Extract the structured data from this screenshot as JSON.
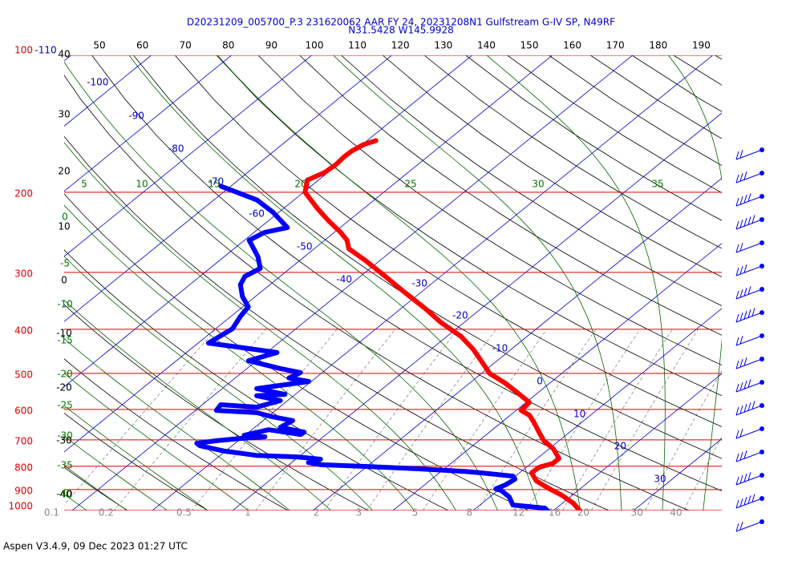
{
  "chart_data": {
    "type": "skewt",
    "title": "D20231209_005700_P.3 231620062 AAR FY 24, 20231208N1 Gulfstream G-IV SP, N49RF",
    "subtitle": "N31.5428 W145.9928",
    "footer": "Aspen V3.4.9, 09 Dec 2023  01:27 UTC",
    "pressure_ticks": [
      100,
      200,
      300,
      400,
      500,
      600,
      700,
      800,
      900,
      1000
    ],
    "isotherm_labels": [
      -110,
      -100,
      -90,
      -80,
      -70,
      -60,
      -50,
      -40,
      -30,
      -20,
      -10,
      0,
      10,
      20,
      30
    ],
    "top_labels": [
      50,
      60,
      70,
      80,
      90,
      100,
      110,
      120,
      130,
      140,
      150,
      160,
      170,
      180,
      190
    ],
    "left_black_labels": [
      40,
      30,
      20,
      10,
      0,
      -10,
      -20,
      -30,
      -40
    ],
    "left_green_labels": [
      0,
      -5,
      -10,
      -15,
      -20,
      -25,
      -30,
      -35,
      -40
    ],
    "top_green_labels": [
      5,
      10,
      15,
      20,
      25,
      30,
      35
    ],
    "mixing_ratio_labels": [
      0.1,
      0.2,
      0.5,
      1,
      2,
      3,
      5,
      8,
      12,
      16,
      20,
      30,
      40
    ],
    "series": [
      {
        "color": "#ff0000",
        "pressure": [
          1013,
          965,
          926,
          897,
          861,
          827,
          804,
          788,
          769,
          732,
          703,
          675,
          643,
          618,
          603,
          579,
          551,
          525,
          500,
          469,
          443,
          415,
          387,
          360,
          332,
          306,
          282,
          266,
          255,
          245,
          231,
          217,
          200,
          188,
          181,
          174,
          167,
          162,
          157,
          154
        ],
        "temperature": [
          23.9,
          21.4,
          18.7,
          16.2,
          13.3,
          11.5,
          11.6,
          12.7,
          12.7,
          10.5,
          8.1,
          6.3,
          4.2,
          2.4,
          0.6,
          0.4,
          -2.6,
          -5.6,
          -9.0,
          -12.0,
          -14.7,
          -18.2,
          -22.8,
          -27.0,
          -32.0,
          -36.9,
          -41.9,
          -45.7,
          -47.2,
          -49.2,
          -52.5,
          -55.8,
          -59.8,
          -61.4,
          -60.4,
          -60.2,
          -60.4,
          -60.3,
          -59.8,
          -58.9
        ]
      },
      {
        "color": "#0000ff",
        "pressure": [
          1013,
          989,
          981,
          973,
          934,
          904,
          897,
          879,
          854,
          841,
          827,
          821,
          810,
          800,
          794,
          785,
          772,
          763,
          757,
          741,
          721,
          712,
          703,
          695,
          689,
          684,
          665,
          681,
          673,
          657,
          635,
          623,
          610,
          603,
          586,
          593,
          574,
          560,
          556,
          540,
          521,
          512,
          498,
          488,
          469,
          450,
          436,
          429,
          399,
          375,
          357,
          339,
          319,
          306,
          294,
          277,
          255,
          245,
          239,
          221,
          208,
          200,
          194
        ],
        "temperature": [
          19.9,
          18.6,
          16.4,
          14.1,
          12.4,
          10.4,
          9.5,
          10.1,
          10.4,
          9.7,
          5.2,
          3.0,
          -3.4,
          -10.8,
          -16.0,
          -17.9,
          -16.9,
          -20.2,
          -25.5,
          -30.1,
          -34.0,
          -34.8,
          -32.7,
          -30.1,
          -27.3,
          -30.1,
          -27.9,
          -23.2,
          -23.1,
          -26.8,
          -26.3,
          -29.4,
          -32.0,
          -37.4,
          -37.7,
          -32.9,
          -30.9,
          -34.6,
          -31.3,
          -35.7,
          -30.3,
          -33.3,
          -32.7,
          -35.8,
          -41.0,
          -38.7,
          -45.2,
          -48.7,
          -47.9,
          -48.8,
          -49.3,
          -51.6,
          -53.7,
          -54.4,
          -53.7,
          -55.8,
          -59.4,
          -58.7,
          -56.6,
          -60.8,
          -64.6,
          -68.3,
          -71.2
        ]
      }
    ]
  }
}
